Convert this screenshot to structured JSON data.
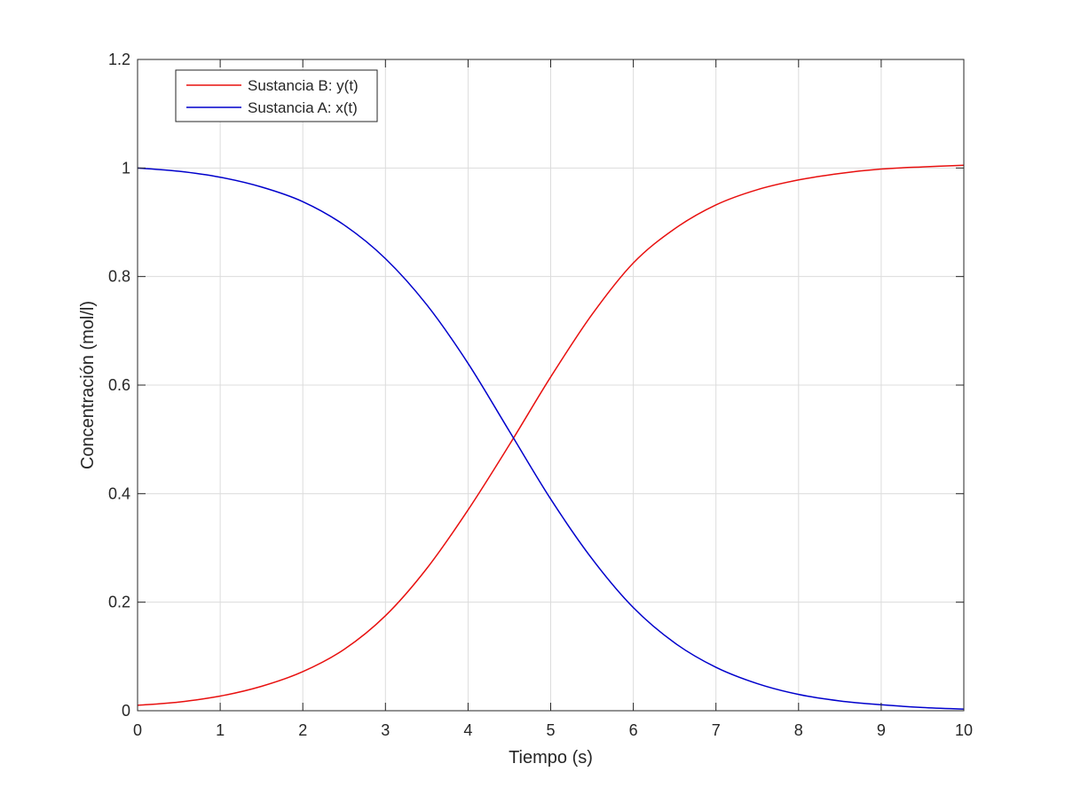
{
  "chart_data": {
    "type": "line",
    "title": "",
    "xlabel": "Tiempo (s)",
    "ylabel": "Concentración (mol/l)",
    "xlim": [
      0,
      10
    ],
    "ylim": [
      0,
      1.2
    ],
    "xticks": [
      0,
      1,
      2,
      3,
      4,
      5,
      6,
      7,
      8,
      9,
      10
    ],
    "yticks": [
      0,
      0.2,
      0.4,
      0.6,
      0.8,
      1,
      1.2
    ],
    "xtick_labels": [
      "0",
      "1",
      "2",
      "3",
      "4",
      "5",
      "6",
      "7",
      "8",
      "9",
      "10"
    ],
    "ytick_labels": [
      "0",
      "0.2",
      "0.4",
      "0.6",
      "0.8",
      "1",
      "1.2"
    ],
    "grid": true,
    "legend_position": "top-left",
    "x": [
      0,
      0.5,
      1,
      1.5,
      2,
      2.5,
      3,
      3.5,
      4,
      4.5,
      5,
      5.5,
      6,
      6.5,
      7,
      7.5,
      8,
      8.5,
      9,
      9.5,
      10
    ],
    "series": [
      {
        "name": "Sustancia B: y(t)",
        "color": "#e8100f",
        "values": [
          0.01,
          0.016,
          0.027,
          0.045,
          0.072,
          0.113,
          0.175,
          0.262,
          0.37,
          0.49,
          0.615,
          0.73,
          0.825,
          0.888,
          0.932,
          0.96,
          0.978,
          0.99,
          0.998,
          1.002,
          1.005
        ]
      },
      {
        "name": "Sustancia A: x(t)",
        "color": "#0000cc",
        "values": [
          1.0,
          0.994,
          0.983,
          0.965,
          0.938,
          0.895,
          0.833,
          0.748,
          0.64,
          0.515,
          0.39,
          0.28,
          0.19,
          0.125,
          0.08,
          0.05,
          0.03,
          0.018,
          0.011,
          0.006,
          0.003
        ]
      }
    ]
  }
}
